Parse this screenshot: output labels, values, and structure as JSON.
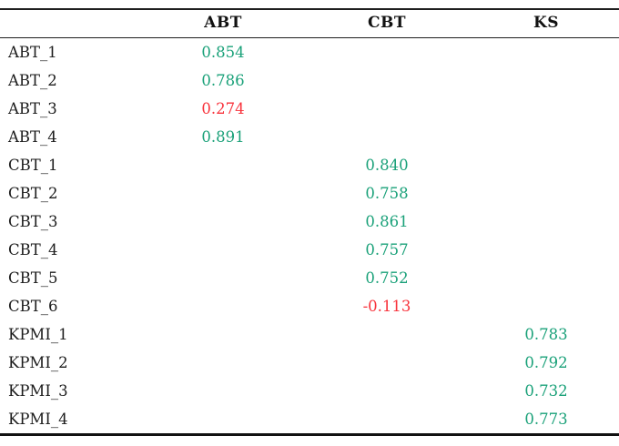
{
  "chart_data": {
    "type": "table",
    "title": "",
    "columns": [
      "",
      "ABT",
      "CBT",
      "KS"
    ],
    "rows": [
      {
        "label": "ABT_1",
        "column": "ABT",
        "value": "0.854",
        "value_color": "green"
      },
      {
        "label": "ABT_2",
        "column": "ABT",
        "value": "0.786",
        "value_color": "green"
      },
      {
        "label": "ABT_3",
        "column": "ABT",
        "value": "0.274",
        "value_color": "red"
      },
      {
        "label": "ABT_4",
        "column": "ABT",
        "value": "0.891",
        "value_color": "green"
      },
      {
        "label": "CBT_1",
        "column": "CBT",
        "value": "0.840",
        "value_color": "green"
      },
      {
        "label": "CBT_2",
        "column": "CBT",
        "value": "0.758",
        "value_color": "green"
      },
      {
        "label": "CBT_3",
        "column": "CBT",
        "value": "0.861",
        "value_color": "green"
      },
      {
        "label": "CBT_4",
        "column": "CBT",
        "value": "0.757",
        "value_color": "green"
      },
      {
        "label": "CBT_5",
        "column": "CBT",
        "value": "0.752",
        "value_color": "green"
      },
      {
        "label": "CBT_6",
        "column": "CBT",
        "value": "-0.113",
        "value_color": "red"
      },
      {
        "label": "KPMI_1",
        "column": "KS",
        "value": "0.783",
        "value_color": "green"
      },
      {
        "label": "KPMI_2",
        "column": "KS",
        "value": "0.792",
        "value_color": "green"
      },
      {
        "label": "KPMI_3",
        "column": "KS",
        "value": "0.732",
        "value_color": "green"
      },
      {
        "label": "KPMI_4",
        "column": "KS",
        "value": "0.773",
        "value_color": "green"
      }
    ],
    "legend_position": "none",
    "grid": "off"
  },
  "colors": {
    "green": "#1aa179",
    "red": "#f8333c",
    "header_text": "#111111",
    "label_text": "#1c1c1c",
    "border": "#1f1f1f",
    "background": "#ffffff"
  }
}
